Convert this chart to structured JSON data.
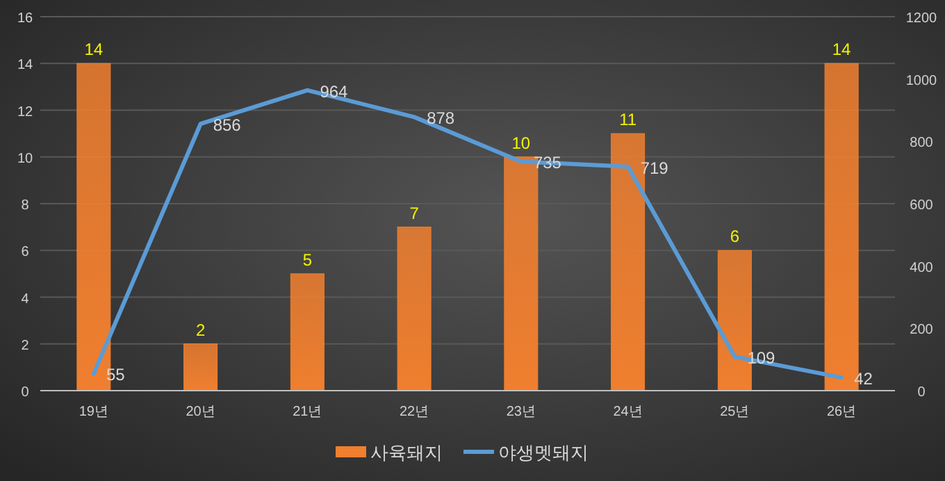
{
  "chart_data": {
    "type": "bar",
    "categories": [
      "19년",
      "20년",
      "21년",
      "22년",
      "23년",
      "24년",
      "25년",
      "26년"
    ],
    "series": [
      {
        "name": "사육돼지",
        "color": "#f07f2f",
        "values": [
          14,
          2,
          5,
          7,
          10,
          11,
          6,
          14
        ]
      },
      {
        "name": "야생멧돼지",
        "type": "line",
        "axis": "y2",
        "color": "#5b9bd5",
        "values": [
          55,
          856,
          964,
          878,
          735,
          719,
          109,
          42
        ]
      }
    ],
    "ylim": [
      0,
      16
    ],
    "yticks": [
      0,
      2,
      4,
      6,
      8,
      10,
      12,
      14,
      16
    ],
    "y2lim": [
      0,
      1200
    ],
    "y2ticks": [
      0,
      200,
      400,
      600,
      800,
      1000,
      1200
    ],
    "data_labels": true,
    "grid": "y",
    "legend": "bottom",
    "marker": "none",
    "line_style": "solid"
  }
}
